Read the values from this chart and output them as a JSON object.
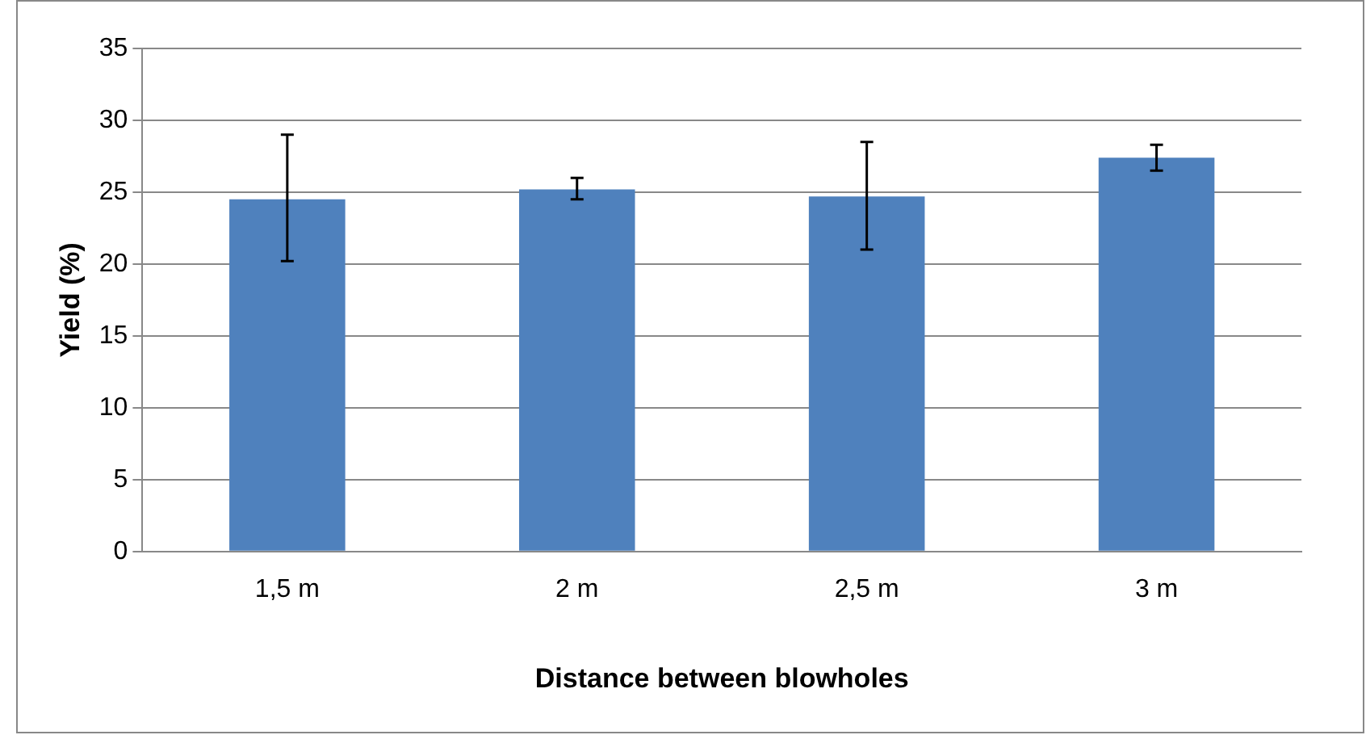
{
  "chart_data": {
    "type": "bar",
    "xlabel": "Distance between blowholes",
    "ylabel": "Yield (%)",
    "categories": [
      "1,5 m",
      "2 m",
      "2,5 m",
      "3 m"
    ],
    "values": [
      24.5,
      25.2,
      24.7,
      27.4
    ],
    "errors": [
      [
        20.2,
        29.0
      ],
      [
        24.5,
        26.0
      ],
      [
        21.0,
        28.5
      ],
      [
        26.5,
        28.3
      ]
    ],
    "color": "#4f81bd",
    "ylim": [
      0,
      35
    ],
    "yticks": [
      0,
      5,
      10,
      15,
      20,
      25,
      30,
      35
    ],
    "grid": "y",
    "legend": false
  }
}
